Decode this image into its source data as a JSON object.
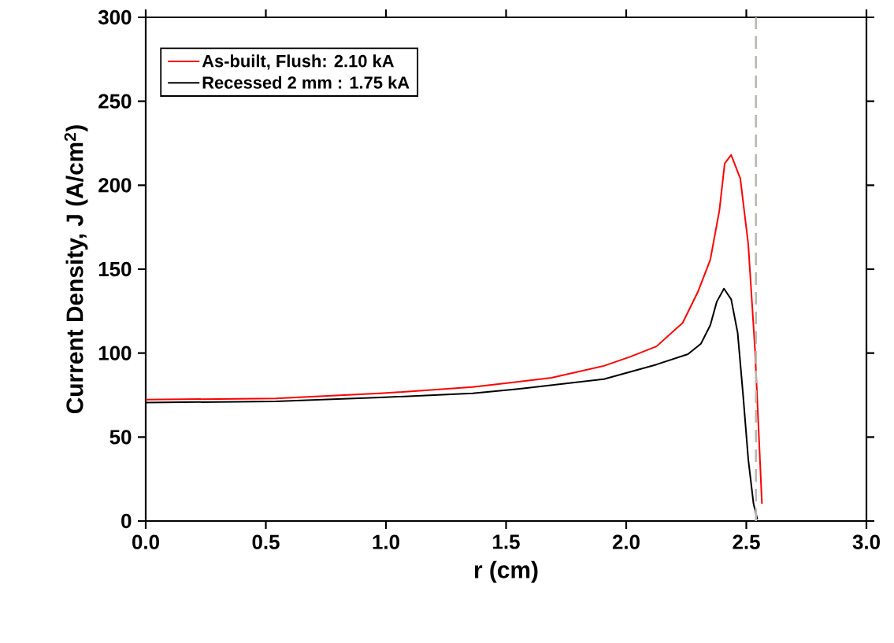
{
  "chart_data": {
    "type": "line",
    "xlabel": "r (cm)",
    "ylabel": "Current Density, J (A/cm$^{2}$)",
    "xlim": [
      0,
      3.0
    ],
    "ylim": [
      0,
      300
    ],
    "xticks": [
      {
        "value": 0,
        "label": "0.0"
      },
      0.5,
      {
        "value": 1,
        "label": "1.0"
      },
      1.5,
      {
        "value": 2,
        "label": "2.0"
      },
      2.5,
      {
        "value": 3,
        "label": "3.0"
      }
    ],
    "yticks": [
      0,
      50,
      100,
      150,
      200,
      250,
      300
    ],
    "legend": "top left",
    "grid": false,
    "marker": "none",
    "line_style": "solid",
    "ref_lines": [
      {
        "axis": "x",
        "value": 2.54,
        "color": "#b8b8b0",
        "line_style": "dashed"
      }
    ],
    "series": [
      {
        "name": "As-built, Flush: 2.10 kA",
        "color": "#ff0000",
        "x": [
          0,
          0.541,
          0.977,
          1.361,
          1.525,
          1.689,
          1.907,
          2.016,
          2.126,
          2.235,
          2.3,
          2.35,
          2.388,
          2.41,
          2.437,
          2.475,
          2.508,
          2.536,
          2.565
        ],
        "values": [
          72.3,
          73,
          76,
          79.8,
          82.5,
          85.3,
          92.4,
          97.8,
          104,
          118,
          137,
          155.6,
          185,
          213,
          218,
          204,
          165,
          102.5,
          10.3
        ]
      },
      {
        "name": "Recessed 2 mm : 1.75 kA",
        "color": "#000000",
        "x": [
          0,
          0.541,
          0.977,
          1.361,
          1.525,
          1.579,
          1.907,
          2.126,
          2.257,
          2.311,
          2.35,
          2.377,
          2.407,
          2.437,
          2.464,
          2.486,
          2.508,
          2.53,
          2.546
        ],
        "values": [
          70.5,
          71.3,
          73.6,
          76,
          78.3,
          79.1,
          84.5,
          93.2,
          99.4,
          105.6,
          116.6,
          130.6,
          138.4,
          132,
          112,
          76,
          36.9,
          10.3,
          1
        ]
      }
    ]
  }
}
